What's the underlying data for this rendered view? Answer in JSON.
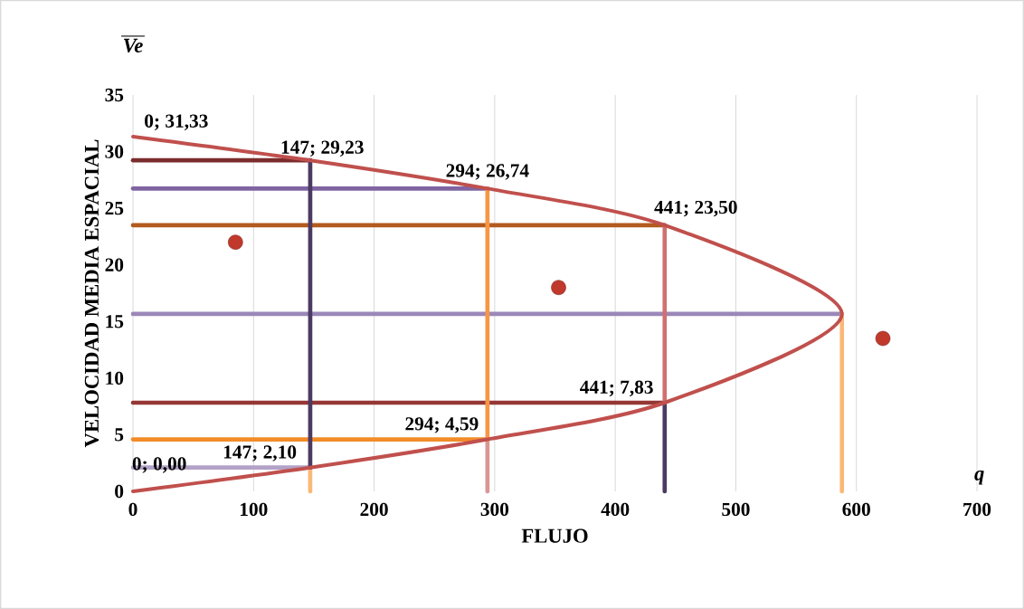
{
  "chart_data": {
    "type": "line",
    "xlabel": "FLUJO",
    "ylabel": "VELOCIDAD MEDIA ESPACIAL",
    "annotations": [
      "Ve",
      "q"
    ],
    "xlim": [
      0,
      700
    ],
    "ylim": [
      0,
      35
    ],
    "xticks": [
      0,
      100,
      200,
      300,
      400,
      500,
      600,
      700
    ],
    "yticks": [
      0,
      5,
      10,
      15,
      20,
      25,
      30,
      35
    ],
    "grid": "x",
    "marker": "none",
    "series": [
      {
        "color": "#7b2c2c",
        "x": [
          0,
          147
        ],
        "values": [
          29.23,
          29.23
        ]
      },
      {
        "color": "#8064a2",
        "x": [
          0,
          294
        ],
        "values": [
          26.74,
          26.74
        ]
      },
      {
        "color": "#b35a1f",
        "x": [
          0,
          441
        ],
        "values": [
          23.5,
          23.5
        ]
      },
      {
        "color": "#9b87b8",
        "x": [
          0,
          588
        ],
        "values": [
          15.67,
          15.67
        ]
      },
      {
        "color": "#953735",
        "x": [
          0,
          441
        ],
        "values": [
          7.83,
          7.83
        ]
      },
      {
        "color": "#f28c28",
        "x": [
          0,
          294
        ],
        "values": [
          4.59,
          4.59
        ]
      },
      {
        "color": "#b3a2c7",
        "x": [
          0,
          147
        ],
        "values": [
          2.1,
          2.1
        ]
      },
      {
        "color": "#fab878",
        "x": [
          147,
          147
        ],
        "values": [
          0,
          2.1
        ]
      },
      {
        "color": "#4b3a63",
        "x": [
          147,
          147
        ],
        "values": [
          2.1,
          29.23
        ]
      },
      {
        "color": "#d99694",
        "x": [
          294,
          294
        ],
        "values": [
          0,
          4.59
        ]
      },
      {
        "color": "#f79646",
        "x": [
          294,
          294
        ],
        "values": [
          4.59,
          26.74
        ]
      },
      {
        "color": "#4b3a63",
        "x": [
          441,
          441
        ],
        "values": [
          0,
          7.83
        ]
      },
      {
        "color": "#d07070",
        "x": [
          441,
          441
        ],
        "values": [
          7.83,
          23.5
        ]
      },
      {
        "color": "#fab878",
        "x": [
          588,
          588
        ],
        "values": [
          0,
          15.67
        ]
      },
      {
        "color": "#c0504d",
        "x": [
          0,
          147,
          294,
          441,
          588,
          441,
          294,
          147,
          0
        ],
        "values": [
          31.33,
          29.23,
          26.74,
          23.5,
          15.67,
          7.83,
          4.59,
          2.1,
          0
        ],
        "value_labels": [
          "0; 31,33",
          "147; 29,23",
          "294; 26,74",
          "441; 23,50",
          null,
          "441; 7,83",
          "294; 4,59",
          "147; 2,10",
          "0; 0,00"
        ]
      },
      {
        "type": "scatter",
        "marker": "circle",
        "color": "#c0392b",
        "x": [
          85,
          353,
          622
        ],
        "values": [
          22,
          18,
          13.5
        ]
      }
    ]
  }
}
